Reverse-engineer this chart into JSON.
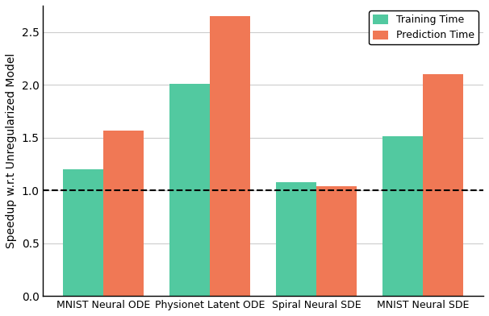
{
  "categories": [
    "MNIST Neural ODE",
    "Physionet Latent ODE",
    "Spiral Neural SDE",
    "MNIST Neural SDE"
  ],
  "training_time": [
    1.2,
    2.01,
    1.08,
    1.51
  ],
  "prediction_time": [
    1.57,
    2.65,
    1.04,
    2.1
  ],
  "training_color": "#52c9a0",
  "prediction_color": "#f07855",
  "ylabel": "Speedup w.r.t Unregularized Model",
  "ylim": [
    0,
    2.75
  ],
  "yticks": [
    0.0,
    0.5,
    1.0,
    1.5,
    2.0,
    2.5
  ],
  "dashed_line_y": 1.0,
  "legend_labels": [
    "Training Time",
    "Prediction Time"
  ],
  "bar_width": 0.38,
  "background_color": "#ffffff",
  "grid_color": "#cccccc",
  "figsize": [
    6.06,
    3.92
  ],
  "dpi": 100
}
